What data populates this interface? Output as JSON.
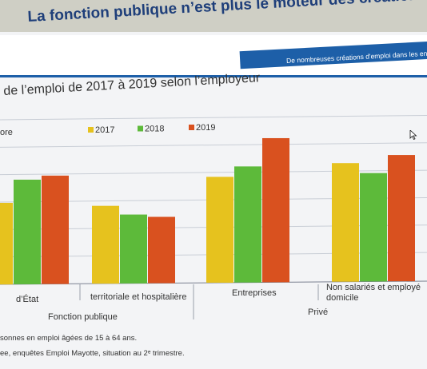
{
  "header": {
    "title": "La fonction publique n’est plus le moteur des créations d’em",
    "banner": "De nombreuses créations d'emploi dans les entrep"
  },
  "chart_data": {
    "type": "bar",
    "subtitle": "de l’emploi de 2017 à 2019 selon l’employeur",
    "legend_partial": "ore",
    "categories": [
      "d’État",
      "territoriale et hospitalière",
      "Entreprises",
      "Non salariés et employés à domicile"
    ],
    "groups": [
      {
        "label": "Fonction publique",
        "categories": [
          0,
          1
        ]
      },
      {
        "label": "Privé",
        "categories": [
          2,
          3
        ]
      }
    ],
    "series": [
      {
        "name": "2017",
        "color": "#e6c21e",
        "values": [
          64,
          61,
          83,
          93
        ]
      },
      {
        "name": "2018",
        "color": "#5dba3a",
        "values": [
          82,
          54,
          91,
          85
        ]
      },
      {
        "name": "2019",
        "color": "#d9511f",
        "values": [
          85,
          52,
          113,
          99
        ]
      }
    ],
    "ylim": [
      0,
      120
    ],
    "grid": true,
    "legend_position": "top"
  },
  "footnotes": {
    "line1": "sonnes en emploi âgées de 15 à 64 ans.",
    "line2": "ee, enquêtes Emploi Mayotte, situation au 2ᵉ trimestre."
  }
}
